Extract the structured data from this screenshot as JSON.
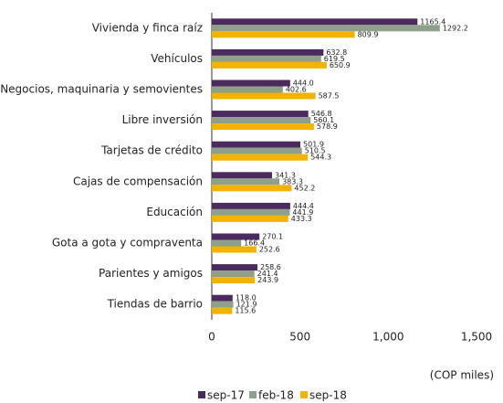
{
  "chart_data": {
    "type": "hbar",
    "categories": [
      "Vivienda y finca raíz",
      "Vehículos",
      "Negocios, maquinaria y semovientes",
      "Libre inversión",
      "Tarjetas de crédito",
      "Cajas de compensación",
      "Educación",
      "Gota a gota y compraventa",
      "Parientes y amigos",
      "Tiendas de barrio"
    ],
    "series": [
      {
        "name": "sep-17",
        "color": "#4b2a5e",
        "values": [
          1165.4,
          632.8,
          444.0,
          546.8,
          501.9,
          341.3,
          444.4,
          270.1,
          258.6,
          118.0
        ],
        "value_labels": [
          "1165.4",
          "632.8",
          "444.0",
          "546.8",
          "501.9",
          "341.3",
          "444.4",
          "270.1",
          "258.6",
          "118.0"
        ]
      },
      {
        "name": "feb-18",
        "color": "#8fa08a",
        "values": [
          1292.2,
          619.5,
          402.6,
          560.1,
          510.5,
          383.3,
          441.9,
          166.4,
          241.4,
          121.9
        ],
        "value_labels": [
          "1292.2",
          "619.5",
          "402.6",
          "560.1",
          "510.5",
          "383.3",
          "441.9",
          "166.4",
          "241.4",
          "121.9"
        ]
      },
      {
        "name": "sep-18",
        "color": "#f0b400",
        "values": [
          809.9,
          650.9,
          587.5,
          578.9,
          544.3,
          452.2,
          433.3,
          252.6,
          243.9,
          115.6
        ],
        "value_labels": [
          "809.9",
          "650.9",
          "587.5",
          "578.9",
          "544.3",
          "452.2",
          "433.3",
          "252.6",
          "243.9",
          "115.6"
        ]
      }
    ],
    "xlim": [
      0,
      1500
    ],
    "xticks": [
      0,
      500,
      {
        "value": 1000,
        "label": "1,000"
      },
      {
        "value": 1500,
        "label": "1,500"
      }
    ],
    "xlabel": "(COP miles)",
    "grid": false
  }
}
